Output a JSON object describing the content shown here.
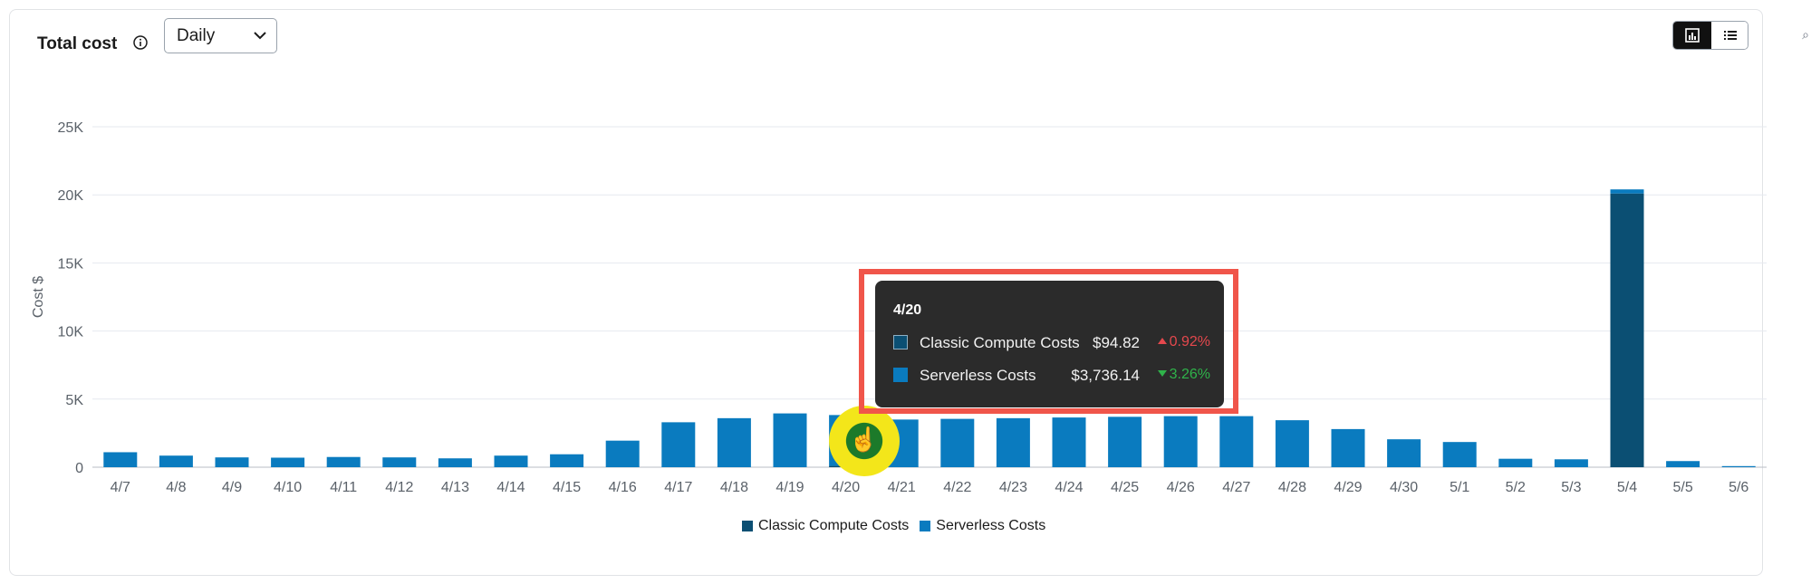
{
  "header": {
    "title": "Total cost",
    "period_select": "Daily",
    "view_toggle": {
      "chart_icon": "bar-chart-icon",
      "table_icon": "list-icon",
      "active": "chart"
    }
  },
  "colors": {
    "classic": "#0b4f73",
    "serverless": "#0a7bbf",
    "grid": "#e6e9ef",
    "tooltip_bg": "#2b2b2b",
    "highlight": "#f0554a",
    "up": "#e5484d",
    "down": "#2fb34a"
  },
  "chart_data": {
    "type": "bar",
    "stacked": true,
    "ylabel": "Cost $",
    "ylim": [
      0,
      25000
    ],
    "yticks": [
      "0",
      "5K",
      "10K",
      "15K",
      "20K",
      "25K"
    ],
    "grid": true,
    "legend_position": "bottom-center",
    "categories": [
      "4/7",
      "4/8",
      "4/9",
      "4/10",
      "4/11",
      "4/12",
      "4/13",
      "4/14",
      "4/15",
      "4/16",
      "4/17",
      "4/18",
      "4/19",
      "4/20",
      "4/21",
      "4/22",
      "4/23",
      "4/24",
      "4/25",
      "4/26",
      "4/27",
      "4/28",
      "4/29",
      "4/30",
      "5/1",
      "5/2",
      "5/3",
      "5/4",
      "5/5",
      "5/6"
    ],
    "series": [
      {
        "name": "Classic Compute Costs",
        "values": [
          0,
          0,
          0,
          0,
          0,
          0,
          0,
          0,
          0,
          0,
          0,
          0,
          0,
          94.82,
          0,
          0,
          0,
          0,
          0,
          0,
          0,
          0,
          0,
          0,
          0,
          0,
          0,
          20100,
          0,
          0
        ]
      },
      {
        "name": "Serverless Costs",
        "values": [
          1100,
          850,
          720,
          700,
          750,
          720,
          650,
          850,
          950,
          1950,
          3300,
          3600,
          3950,
          3736.14,
          3500,
          3550,
          3600,
          3650,
          3700,
          3750,
          3750,
          3450,
          2800,
          2050,
          1850,
          620,
          580,
          300,
          450,
          80
        ]
      }
    ]
  },
  "tooltip": {
    "date": "4/20",
    "rows": [
      {
        "name": "Classic Compute Costs",
        "value": "$94.82",
        "change": "0.92%",
        "direction": "up"
      },
      {
        "name": "Serverless Costs",
        "value": "$3,736.14",
        "change": "3.26%",
        "direction": "down"
      }
    ]
  }
}
